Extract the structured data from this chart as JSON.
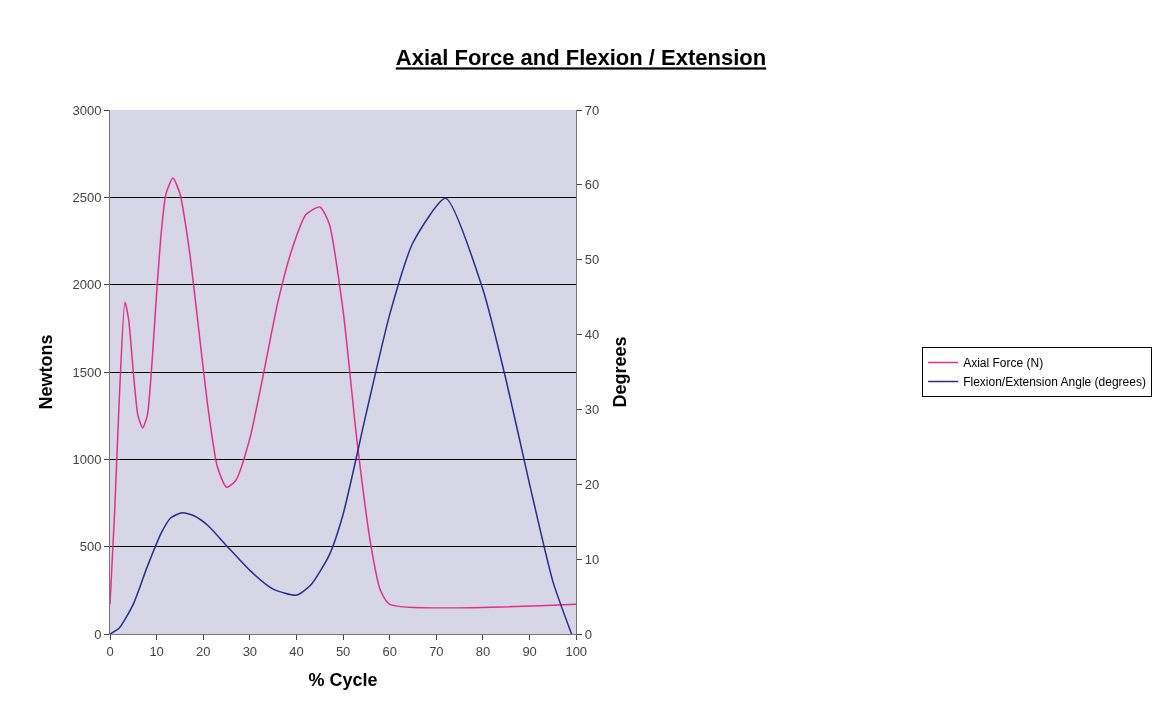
{
  "chart_data": {
    "type": "line",
    "title": "Axial Force and Flexion / Extension",
    "xlabel": "% Cycle",
    "ylabel": "Newtons",
    "y2label": "Degrees",
    "xlim": [
      0,
      100
    ],
    "xticks": [
      0,
      10,
      20,
      30,
      40,
      50,
      60,
      70,
      80,
      90,
      100
    ],
    "ylim": [
      0,
      3000
    ],
    "yticks": [
      0,
      500,
      1000,
      1500,
      2000,
      2500,
      3000
    ],
    "y2lim": [
      0,
      70
    ],
    "y2ticks": [
      0,
      10,
      20,
      30,
      40,
      50,
      60,
      70
    ],
    "grid": "y",
    "legend": "right",
    "marker": "none",
    "line_style": "solid",
    "series": [
      {
        "name": "Axial Force (N)",
        "color": "#e0308a",
        "x": [
          0,
          1,
          2,
          3.2,
          4,
          5,
          6,
          7,
          8,
          9,
          10,
          11,
          12,
          13.5,
          15,
          17,
          19,
          21,
          23,
          25,
          27,
          30,
          33,
          36,
          39,
          42,
          45,
          47,
          50,
          53,
          56,
          58,
          60,
          100
        ],
        "values": [
          170,
          700,
          1350,
          1900,
          1800,
          1500,
          1250,
          1180,
          1250,
          1550,
          1950,
          2300,
          2520,
          2610,
          2520,
          2200,
          1750,
          1300,
          960,
          840,
          880,
          1120,
          1500,
          1900,
          2200,
          2400,
          2445,
          2350,
          1850,
          1100,
          500,
          250,
          170,
          170
        ]
      },
      {
        "name": "Flexion/Extension Angle (degrees)",
        "color": "#2c2c8a",
        "axis": "y2",
        "x": [
          0,
          2,
          5,
          8,
          11,
          13,
          15.5,
          18,
          21,
          25,
          30,
          35,
          40,
          43,
          47,
          50,
          55,
          60,
          65,
          72,
          80,
          85,
          90,
          95,
          99
        ],
        "values": [
          0,
          0.8,
          4,
          9,
          13.5,
          15.5,
          16.2,
          15.8,
          14.5,
          11.8,
          8.5,
          6,
          5.2,
          6.5,
          10.5,
          16,
          29.6,
          42.7,
          52.3,
          58.2,
          46,
          33.8,
          20,
          7,
          0
        ]
      }
    ]
  }
}
